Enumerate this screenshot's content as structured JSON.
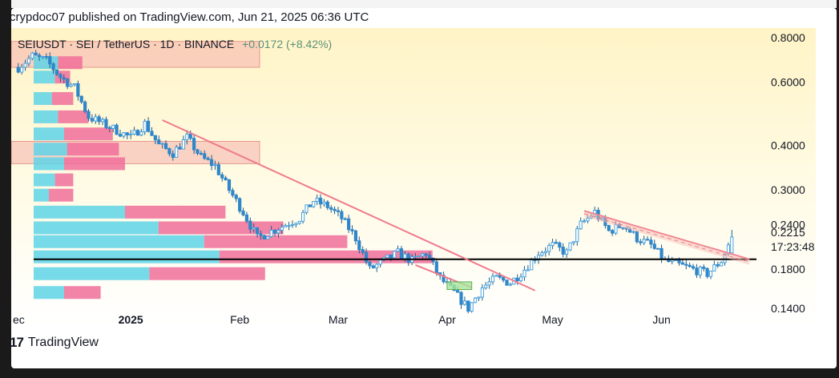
{
  "header": {
    "published": "crypdoc07 published on TradingView.com, Jun 21, 2025 06:36 UTC"
  },
  "symbol": {
    "title": "SEIUSDT · SEI / TetherUS · 1D · BINANCE",
    "change": "+0.0172 (+8.42%)"
  },
  "footer": {
    "brand": "TradingView",
    "logo_glyph": "17"
  },
  "colors": {
    "up": "#2196f3",
    "down": "#2196f3",
    "trendline": "#f07a8c",
    "zone": "#f7b8b0",
    "support": "#000000",
    "vp_blue": "#5fd3e6",
    "vp_pink": "#f06f9a",
    "price_box": "#4f8f7c"
  },
  "chart_data": {
    "type": "candlestick",
    "title": "SEIUSDT · SEI / TetherUS · 1D · BINANCE",
    "y_scale": "log",
    "ylim": [
      0.125,
      0.85
    ],
    "y_ticks": [
      "0.8000",
      "0.6000",
      "0.4000",
      "0.3000",
      "0.2400",
      "0.1800",
      "0.1400"
    ],
    "y_tick_values": [
      0.8,
      0.6,
      0.4,
      0.3,
      0.24,
      0.18,
      0.14
    ],
    "x_ticks": [
      "ec",
      "2025",
      "Feb",
      "Mar",
      "Apr",
      "May",
      "Jun"
    ],
    "x_tick_dates": [
      "2024-12-02",
      "2025-01-01",
      "2025-02-01",
      "2025-03-01",
      "2025-04-01",
      "2025-05-01",
      "2025-06-01"
    ],
    "x_range": [
      "2024-11-28",
      "2025-06-28"
    ],
    "last_price": "0.2215",
    "countdown": "17:23:48",
    "close_series": [
      {
        "date": "2024-11-30",
        "close": 0.66
      },
      {
        "date": "2024-12-04",
        "close": 0.71
      },
      {
        "date": "2024-12-08",
        "close": 0.69
      },
      {
        "date": "2024-12-12",
        "close": 0.62
      },
      {
        "date": "2024-12-16",
        "close": 0.58
      },
      {
        "date": "2024-12-20",
        "close": 0.48
      },
      {
        "date": "2024-12-24",
        "close": 0.46
      },
      {
        "date": "2024-12-28",
        "close": 0.44
      },
      {
        "date": "2025-01-01",
        "close": 0.42
      },
      {
        "date": "2025-01-05",
        "close": 0.46
      },
      {
        "date": "2025-01-09",
        "close": 0.4
      },
      {
        "date": "2025-01-13",
        "close": 0.38
      },
      {
        "date": "2025-01-17",
        "close": 0.42
      },
      {
        "date": "2025-01-21",
        "close": 0.37
      },
      {
        "date": "2025-01-25",
        "close": 0.35
      },
      {
        "date": "2025-01-29",
        "close": 0.3
      },
      {
        "date": "2025-02-02",
        "close": 0.26
      },
      {
        "date": "2025-02-06",
        "close": 0.22
      },
      {
        "date": "2025-02-10",
        "close": 0.23
      },
      {
        "date": "2025-02-14",
        "close": 0.24
      },
      {
        "date": "2025-02-18",
        "close": 0.25
      },
      {
        "date": "2025-02-22",
        "close": 0.28
      },
      {
        "date": "2025-02-26",
        "close": 0.27
      },
      {
        "date": "2025-03-02",
        "close": 0.25
      },
      {
        "date": "2025-03-06",
        "close": 0.22
      },
      {
        "date": "2025-03-10",
        "close": 0.18
      },
      {
        "date": "2025-03-14",
        "close": 0.19
      },
      {
        "date": "2025-03-18",
        "close": 0.2
      },
      {
        "date": "2025-03-22",
        "close": 0.19
      },
      {
        "date": "2025-03-26",
        "close": 0.2
      },
      {
        "date": "2025-03-30",
        "close": 0.17
      },
      {
        "date": "2025-04-03",
        "close": 0.155
      },
      {
        "date": "2025-04-07",
        "close": 0.14
      },
      {
        "date": "2025-04-11",
        "close": 0.16
      },
      {
        "date": "2025-04-15",
        "close": 0.17
      },
      {
        "date": "2025-04-19",
        "close": 0.165
      },
      {
        "date": "2025-04-23",
        "close": 0.18
      },
      {
        "date": "2025-04-27",
        "close": 0.2
      },
      {
        "date": "2025-05-01",
        "close": 0.21
      },
      {
        "date": "2025-05-05",
        "close": 0.2
      },
      {
        "date": "2025-05-09",
        "close": 0.24
      },
      {
        "date": "2025-05-13",
        "close": 0.26
      },
      {
        "date": "2025-05-17",
        "close": 0.23
      },
      {
        "date": "2025-05-21",
        "close": 0.24
      },
      {
        "date": "2025-05-25",
        "close": 0.22
      },
      {
        "date": "2025-05-29",
        "close": 0.21
      },
      {
        "date": "2025-06-02",
        "close": 0.19
      },
      {
        "date": "2025-06-06",
        "close": 0.185
      },
      {
        "date": "2025-06-10",
        "close": 0.18
      },
      {
        "date": "2025-06-14",
        "close": 0.175
      },
      {
        "date": "2025-06-18",
        "close": 0.19
      },
      {
        "date": "2025-06-21",
        "close": 0.2215
      }
    ],
    "support_level": 0.192,
    "resistance_zones": [
      [
        0.66,
        0.78
      ],
      [
        0.355,
        0.41
      ]
    ],
    "trendlines": [
      {
        "from": {
          "date": "2025-01-10",
          "price": 0.47
        },
        "to": {
          "date": "2025-04-26",
          "price": 0.157
        }
      },
      {
        "from": {
          "date": "2025-03-23",
          "price": 0.185
        },
        "to": {
          "date": "2025-04-08",
          "price": 0.16
        }
      },
      {
        "from": {
          "date": "2025-05-10",
          "price": 0.262
        },
        "to": {
          "date": "2025-06-26",
          "price": 0.192
        }
      }
    ],
    "accumulation_box": {
      "start": "2025-04-01",
      "end": "2025-04-08",
      "low": 0.158,
      "high": 0.166
    },
    "volume_profile": [
      {
        "price": 0.68,
        "up": 0.08,
        "down": 0.08
      },
      {
        "price": 0.62,
        "up": 0.07,
        "down": 0.05
      },
      {
        "price": 0.54,
        "up": 0.06,
        "down": 0.07
      },
      {
        "price": 0.48,
        "up": 0.08,
        "down": 0.1
      },
      {
        "price": 0.43,
        "up": 0.1,
        "down": 0.16
      },
      {
        "price": 0.39,
        "up": 0.11,
        "down": 0.17
      },
      {
        "price": 0.355,
        "up": 0.1,
        "down": 0.2
      },
      {
        "price": 0.32,
        "up": 0.07,
        "down": 0.06
      },
      {
        "price": 0.29,
        "up": 0.05,
        "down": 0.08
      },
      {
        "price": 0.26,
        "up": 0.3,
        "down": 0.33
      },
      {
        "price": 0.235,
        "up": 0.41,
        "down": 0.41
      },
      {
        "price": 0.215,
        "up": 0.56,
        "down": 0.47
      },
      {
        "price": 0.195,
        "up": 0.61,
        "down": 0.7
      },
      {
        "price": 0.175,
        "up": 0.38,
        "down": 0.38
      },
      {
        "price": 0.155,
        "up": 0.1,
        "down": 0.12
      }
    ]
  }
}
